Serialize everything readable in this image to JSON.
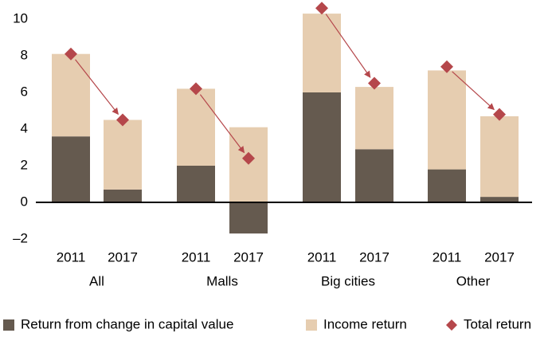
{
  "chart_data": {
    "type": "stacked-bar-with-markers",
    "categories": [
      "2011",
      "2017",
      "2011",
      "2017",
      "2011",
      "2017",
      "2011",
      "2017"
    ],
    "groups": [
      "All",
      "Malls",
      "Big cities",
      "Other"
    ],
    "series": [
      {
        "name": "Return from change in capital value",
        "color": "#655a4f",
        "kind": "bar",
        "values": [
          3.6,
          0.7,
          2.0,
          -1.7,
          6.0,
          2.9,
          1.8,
          0.3
        ]
      },
      {
        "name": "Income return",
        "color": "#e6cdb0",
        "kind": "bar",
        "values": [
          4.5,
          3.8,
          4.2,
          4.1,
          4.3,
          3.4,
          5.4,
          4.4
        ]
      },
      {
        "name": "Total return",
        "color": "#b5474b",
        "kind": "marker",
        "values": [
          8.1,
          4.5,
          6.2,
          2.4,
          10.6,
          6.5,
          7.4,
          4.8
        ]
      }
    ],
    "ylim": [
      -2.5,
      11
    ],
    "yticks": [
      {
        "value": -2,
        "label": "–2"
      },
      0,
      2,
      4,
      6,
      8,
      10
    ],
    "grid": false
  }
}
